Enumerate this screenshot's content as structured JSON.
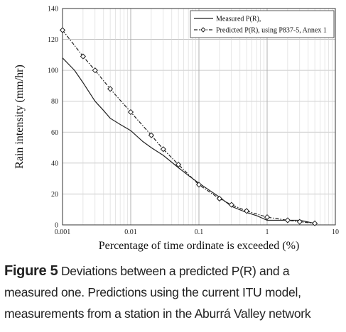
{
  "chart_data": {
    "type": "line",
    "xscale": "log",
    "xlim": [
      0.001,
      10
    ],
    "ylim": [
      0,
      140
    ],
    "xticks": [
      0.001,
      0.01,
      0.1,
      1,
      10
    ],
    "xtick_labels": [
      "0.001",
      "0.01",
      "0.1",
      "1",
      "10"
    ],
    "yticks": [
      0,
      20,
      40,
      60,
      80,
      100,
      120,
      140
    ],
    "ytick_labels": [
      "0",
      "20",
      "40",
      "60",
      "80",
      "100",
      "120",
      "140"
    ],
    "xlabel": "Percentage of time ordinate is exceeded (%)",
    "ylabel": "Rain intensity (mm/hr)",
    "grid": true,
    "legend_position": "top-right",
    "series": [
      {
        "name": "Measured P(R),",
        "style": "solid",
        "color": "#222222",
        "x": [
          0.001,
          0.0015,
          0.002,
          0.003,
          0.004,
          0.005,
          0.007,
          0.01,
          0.015,
          0.02,
          0.03,
          0.05,
          0.07,
          0.1,
          0.2,
          0.3,
          0.5,
          0.7,
          1,
          2,
          3,
          5
        ],
        "y": [
          108,
          100,
          92,
          80,
          74,
          69,
          65,
          61,
          54,
          50,
          45,
          37,
          32,
          27,
          18,
          12,
          8,
          6,
          3,
          3,
          3,
          1
        ]
      },
      {
        "name": "Predicted P(R), using P837-5, Annex 1",
        "style": "dash-dot",
        "marker": "diamond",
        "color": "#222222",
        "x": [
          0.001,
          0.002,
          0.003,
          0.005,
          0.01,
          0.02,
          0.03,
          0.05,
          0.1,
          0.2,
          0.3,
          0.5,
          1,
          2,
          3,
          5
        ],
        "y": [
          126,
          109,
          100,
          88,
          73,
          58,
          49,
          39,
          26,
          17,
          13,
          9,
          5,
          3,
          2,
          1
        ]
      }
    ]
  },
  "caption": {
    "label": "Figure 5",
    "text": " Deviations between a predicted P(R) and a measured one. Predictions using the current ITU model, measurements from a station in the Aburrá Valley network"
  }
}
